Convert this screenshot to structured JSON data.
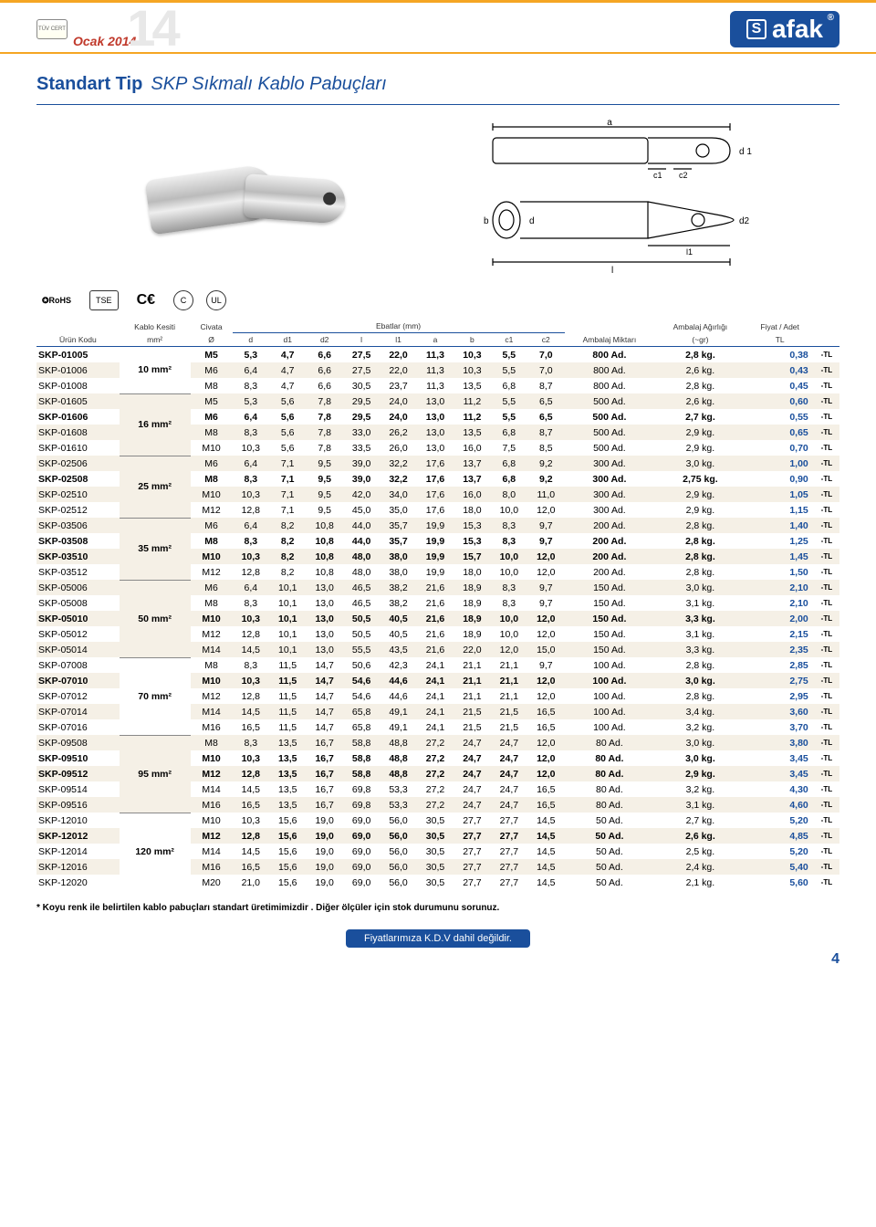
{
  "header": {
    "cert_small": "TÜV CERT",
    "date": "Ocak 2014",
    "year_big": "14",
    "logo_text": "afak"
  },
  "title": {
    "strong": "Standart Tip",
    "italic": "SKP Sıkmalı Kablo Pabuçları"
  },
  "diagram_labels": [
    "a",
    "c1",
    "c2",
    "d1",
    "b",
    "d",
    "d2",
    "l1",
    "l"
  ],
  "cert_row": [
    "RoHS",
    "TSE",
    "CE",
    "C",
    "UL"
  ],
  "columns": {
    "urun": "Ürün Kodu",
    "kesit": "Kablo Kesiti",
    "kesit_sub": "mm²",
    "civata": "Civata",
    "civata_sub": "Ø",
    "ebatlar": "Ebatlar (mm)",
    "d": "d",
    "d1": "d1",
    "d2": "d2",
    "l": "l",
    "l1": "l1",
    "a": "a",
    "b": "b",
    "c1": "c1",
    "c2": "c2",
    "miktar": "Ambalaj Miktarı",
    "agirlik": "Ambalaj Ağırlığı",
    "agirlik_sub": "(~gr)",
    "fiyat": "Fiyat / Adet",
    "fiyat_sub": "TL"
  },
  "kesit_groups": [
    {
      "label": "10 mm²",
      "span": 3
    },
    {
      "label": "16 mm²",
      "span": 4
    },
    {
      "label": "25 mm²",
      "span": 4
    },
    {
      "label": "35 mm²",
      "span": 4
    },
    {
      "label": "50 mm²",
      "span": 5
    },
    {
      "label": "70 mm²",
      "span": 5
    },
    {
      "label": "95 mm²",
      "span": 5
    },
    {
      "label": "120 mm²",
      "span": 5
    }
  ],
  "rows": [
    {
      "bold": true,
      "code": "SKP-01005",
      "c": "M5",
      "d": "5,3",
      "d1": "4,7",
      "d2": "6,6",
      "l": "27,5",
      "l1": "22,0",
      "a": "11,3",
      "b": "10,3",
      "c1": "5,5",
      "c2": "7,0",
      "m": "800 Ad.",
      "w": "2,8 kg.",
      "p": "0,38"
    },
    {
      "bold": false,
      "code": "SKP-01006",
      "c": "M6",
      "d": "6,4",
      "d1": "4,7",
      "d2": "6,6",
      "l": "27,5",
      "l1": "22,0",
      "a": "11,3",
      "b": "10,3",
      "c1": "5,5",
      "c2": "7,0",
      "m": "800 Ad.",
      "w": "2,6 kg.",
      "p": "0,43"
    },
    {
      "bold": false,
      "code": "SKP-01008",
      "c": "M8",
      "d": "8,3",
      "d1": "4,7",
      "d2": "6,6",
      "l": "30,5",
      "l1": "23,7",
      "a": "11,3",
      "b": "13,5",
      "c1": "6,8",
      "c2": "8,7",
      "m": "800 Ad.",
      "w": "2,8 kg.",
      "p": "0,45"
    },
    {
      "bold": false,
      "code": "SKP-01605",
      "c": "M5",
      "d": "5,3",
      "d1": "5,6",
      "d2": "7,8",
      "l": "29,5",
      "l1": "24,0",
      "a": "13,0",
      "b": "11,2",
      "c1": "5,5",
      "c2": "6,5",
      "m": "500 Ad.",
      "w": "2,6 kg.",
      "p": "0,60"
    },
    {
      "bold": true,
      "code": "SKP-01606",
      "c": "M6",
      "d": "6,4",
      "d1": "5,6",
      "d2": "7,8",
      "l": "29,5",
      "l1": "24,0",
      "a": "13,0",
      "b": "11,2",
      "c1": "5,5",
      "c2": "6,5",
      "m": "500 Ad.",
      "w": "2,7 kg.",
      "p": "0,55"
    },
    {
      "bold": false,
      "code": "SKP-01608",
      "c": "M8",
      "d": "8,3",
      "d1": "5,6",
      "d2": "7,8",
      "l": "33,0",
      "l1": "26,2",
      "a": "13,0",
      "b": "13,5",
      "c1": "6,8",
      "c2": "8,7",
      "m": "500 Ad.",
      "w": "2,9 kg.",
      "p": "0,65"
    },
    {
      "bold": false,
      "code": "SKP-01610",
      "c": "M10",
      "d": "10,3",
      "d1": "5,6",
      "d2": "7,8",
      "l": "33,5",
      "l1": "26,0",
      "a": "13,0",
      "b": "16,0",
      "c1": "7,5",
      "c2": "8,5",
      "m": "500 Ad.",
      "w": "2,9 kg.",
      "p": "0,70"
    },
    {
      "bold": false,
      "code": "SKP-02506",
      "c": "M6",
      "d": "6,4",
      "d1": "7,1",
      "d2": "9,5",
      "l": "39,0",
      "l1": "32,2",
      "a": "17,6",
      "b": "13,7",
      "c1": "6,8",
      "c2": "9,2",
      "m": "300 Ad.",
      "w": "3,0 kg.",
      "p": "1,00"
    },
    {
      "bold": true,
      "code": "SKP-02508",
      "c": "M8",
      "d": "8,3",
      "d1": "7,1",
      "d2": "9,5",
      "l": "39,0",
      "l1": "32,2",
      "a": "17,6",
      "b": "13,7",
      "c1": "6,8",
      "c2": "9,2",
      "m": "300 Ad.",
      "w": "2,75 kg.",
      "p": "0,90"
    },
    {
      "bold": false,
      "code": "SKP-02510",
      "c": "M10",
      "d": "10,3",
      "d1": "7,1",
      "d2": "9,5",
      "l": "42,0",
      "l1": "34,0",
      "a": "17,6",
      "b": "16,0",
      "c1": "8,0",
      "c2": "11,0",
      "m": "300 Ad.",
      "w": "2,9 kg.",
      "p": "1,05"
    },
    {
      "bold": false,
      "code": "SKP-02512",
      "c": "M12",
      "d": "12,8",
      "d1": "7,1",
      "d2": "9,5",
      "l": "45,0",
      "l1": "35,0",
      "a": "17,6",
      "b": "18,0",
      "c1": "10,0",
      "c2": "12,0",
      "m": "300 Ad.",
      "w": "2,9 kg.",
      "p": "1,15"
    },
    {
      "bold": false,
      "code": "SKP-03506",
      "c": "M6",
      "d": "6,4",
      "d1": "8,2",
      "d2": "10,8",
      "l": "44,0",
      "l1": "35,7",
      "a": "19,9",
      "b": "15,3",
      "c1": "8,3",
      "c2": "9,7",
      "m": "200 Ad.",
      "w": "2,8 kg.",
      "p": "1,40"
    },
    {
      "bold": true,
      "code": "SKP-03508",
      "c": "M8",
      "d": "8,3",
      "d1": "8,2",
      "d2": "10,8",
      "l": "44,0",
      "l1": "35,7",
      "a": "19,9",
      "b": "15,3",
      "c1": "8,3",
      "c2": "9,7",
      "m": "200 Ad.",
      "w": "2,8 kg.",
      "p": "1,25"
    },
    {
      "bold": true,
      "code": "SKP-03510",
      "c": "M10",
      "d": "10,3",
      "d1": "8,2",
      "d2": "10,8",
      "l": "48,0",
      "l1": "38,0",
      "a": "19,9",
      "b": "15,7",
      "c1": "10,0",
      "c2": "12,0",
      "m": "200 Ad.",
      "w": "2,8 kg.",
      "p": "1,45"
    },
    {
      "bold": false,
      "code": "SKP-03512",
      "c": "M12",
      "d": "12,8",
      "d1": "8,2",
      "d2": "10,8",
      "l": "48,0",
      "l1": "38,0",
      "a": "19,9",
      "b": "18,0",
      "c1": "10,0",
      "c2": "12,0",
      "m": "200 Ad.",
      "w": "2,8 kg.",
      "p": "1,50"
    },
    {
      "bold": false,
      "code": "SKP-05006",
      "c": "M6",
      "d": "6,4",
      "d1": "10,1",
      "d2": "13,0",
      "l": "46,5",
      "l1": "38,2",
      "a": "21,6",
      "b": "18,9",
      "c1": "8,3",
      "c2": "9,7",
      "m": "150 Ad.",
      "w": "3,0 kg.",
      "p": "2,10"
    },
    {
      "bold": false,
      "code": "SKP-05008",
      "c": "M8",
      "d": "8,3",
      "d1": "10,1",
      "d2": "13,0",
      "l": "46,5",
      "l1": "38,2",
      "a": "21,6",
      "b": "18,9",
      "c1": "8,3",
      "c2": "9,7",
      "m": "150 Ad.",
      "w": "3,1 kg.",
      "p": "2,10"
    },
    {
      "bold": true,
      "code": "SKP-05010",
      "c": "M10",
      "d": "10,3",
      "d1": "10,1",
      "d2": "13,0",
      "l": "50,5",
      "l1": "40,5",
      "a": "21,6",
      "b": "18,9",
      "c1": "10,0",
      "c2": "12,0",
      "m": "150 Ad.",
      "w": "3,3 kg.",
      "p": "2,00"
    },
    {
      "bold": false,
      "code": "SKP-05012",
      "c": "M12",
      "d": "12,8",
      "d1": "10,1",
      "d2": "13,0",
      "l": "50,5",
      "l1": "40,5",
      "a": "21,6",
      "b": "18,9",
      "c1": "10,0",
      "c2": "12,0",
      "m": "150 Ad.",
      "w": "3,1 kg.",
      "p": "2,15"
    },
    {
      "bold": false,
      "code": "SKP-05014",
      "c": "M14",
      "d": "14,5",
      "d1": "10,1",
      "d2": "13,0",
      "l": "55,5",
      "l1": "43,5",
      "a": "21,6",
      "b": "22,0",
      "c1": "12,0",
      "c2": "15,0",
      "m": "150 Ad.",
      "w": "3,3 kg.",
      "p": "2,35"
    },
    {
      "bold": false,
      "code": "SKP-07008",
      "c": "M8",
      "d": "8,3",
      "d1": "11,5",
      "d2": "14,7",
      "l": "50,6",
      "l1": "42,3",
      "a": "24,1",
      "b": "21,1",
      "c1": "21,1",
      "c2": "9,7",
      "m": "100 Ad.",
      "w": "2,8 kg.",
      "p": "2,85"
    },
    {
      "bold": true,
      "code": "SKP-07010",
      "c": "M10",
      "d": "10,3",
      "d1": "11,5",
      "d2": "14,7",
      "l": "54,6",
      "l1": "44,6",
      "a": "24,1",
      "b": "21,1",
      "c1": "21,1",
      "c2": "12,0",
      "m": "100 Ad.",
      "w": "3,0 kg.",
      "p": "2,75"
    },
    {
      "bold": false,
      "code": "SKP-07012",
      "c": "M12",
      "d": "12,8",
      "d1": "11,5",
      "d2": "14,7",
      "l": "54,6",
      "l1": "44,6",
      "a": "24,1",
      "b": "21,1",
      "c1": "21,1",
      "c2": "12,0",
      "m": "100 Ad.",
      "w": "2,8 kg.",
      "p": "2,95"
    },
    {
      "bold": false,
      "code": "SKP-07014",
      "c": "M14",
      "d": "14,5",
      "d1": "11,5",
      "d2": "14,7",
      "l": "65,8",
      "l1": "49,1",
      "a": "24,1",
      "b": "21,5",
      "c1": "21,5",
      "c2": "16,5",
      "m": "100 Ad.",
      "w": "3,4 kg.",
      "p": "3,60"
    },
    {
      "bold": false,
      "code": "SKP-07016",
      "c": "M16",
      "d": "16,5",
      "d1": "11,5",
      "d2": "14,7",
      "l": "65,8",
      "l1": "49,1",
      "a": "24,1",
      "b": "21,5",
      "c1": "21,5",
      "c2": "16,5",
      "m": "100 Ad.",
      "w": "3,2 kg.",
      "p": "3,70"
    },
    {
      "bold": false,
      "code": "SKP-09508",
      "c": "M8",
      "d": "8,3",
      "d1": "13,5",
      "d2": "16,7",
      "l": "58,8",
      "l1": "48,8",
      "a": "27,2",
      "b": "24,7",
      "c1": "24,7",
      "c2": "12,0",
      "m": "80 Ad.",
      "w": "3,0 kg.",
      "p": "3,80"
    },
    {
      "bold": true,
      "code": "SKP-09510",
      "c": "M10",
      "d": "10,3",
      "d1": "13,5",
      "d2": "16,7",
      "l": "58,8",
      "l1": "48,8",
      "a": "27,2",
      "b": "24,7",
      "c1": "24,7",
      "c2": "12,0",
      "m": "80 Ad.",
      "w": "3,0 kg.",
      "p": "3,45"
    },
    {
      "bold": true,
      "code": "SKP-09512",
      "c": "M12",
      "d": "12,8",
      "d1": "13,5",
      "d2": "16,7",
      "l": "58,8",
      "l1": "48,8",
      "a": "27,2",
      "b": "24,7",
      "c1": "24,7",
      "c2": "12,0",
      "m": "80 Ad.",
      "w": "2,9 kg.",
      "p": "3,45"
    },
    {
      "bold": false,
      "code": "SKP-09514",
      "c": "M14",
      "d": "14,5",
      "d1": "13,5",
      "d2": "16,7",
      "l": "69,8",
      "l1": "53,3",
      "a": "27,2",
      "b": "24,7",
      "c1": "24,7",
      "c2": "16,5",
      "m": "80 Ad.",
      "w": "3,2 kg.",
      "p": "4,30"
    },
    {
      "bold": false,
      "code": "SKP-09516",
      "c": "M16",
      "d": "16,5",
      "d1": "13,5",
      "d2": "16,7",
      "l": "69,8",
      "l1": "53,3",
      "a": "27,2",
      "b": "24,7",
      "c1": "24,7",
      "c2": "16,5",
      "m": "80 Ad.",
      "w": "3,1 kg.",
      "p": "4,60"
    },
    {
      "bold": false,
      "code": "SKP-12010",
      "c": "M10",
      "d": "10,3",
      "d1": "15,6",
      "d2": "19,0",
      "l": "69,0",
      "l1": "56,0",
      "a": "30,5",
      "b": "27,7",
      "c1": "27,7",
      "c2": "14,5",
      "m": "50 Ad.",
      "w": "2,7 kg.",
      "p": "5,20"
    },
    {
      "bold": true,
      "code": "SKP-12012",
      "c": "M12",
      "d": "12,8",
      "d1": "15,6",
      "d2": "19,0",
      "l": "69,0",
      "l1": "56,0",
      "a": "30,5",
      "b": "27,7",
      "c1": "27,7",
      "c2": "14,5",
      "m": "50 Ad.",
      "w": "2,6 kg.",
      "p": "4,85"
    },
    {
      "bold": false,
      "code": "SKP-12014",
      "c": "M14",
      "d": "14,5",
      "d1": "15,6",
      "d2": "19,0",
      "l": "69,0",
      "l1": "56,0",
      "a": "30,5",
      "b": "27,7",
      "c1": "27,7",
      "c2": "14,5",
      "m": "50 Ad.",
      "w": "2,5 kg.",
      "p": "5,20"
    },
    {
      "bold": false,
      "code": "SKP-12016",
      "c": "M16",
      "d": "16,5",
      "d1": "15,6",
      "d2": "19,0",
      "l": "69,0",
      "l1": "56,0",
      "a": "30,5",
      "b": "27,7",
      "c1": "27,7",
      "c2": "14,5",
      "m": "50 Ad.",
      "w": "2,4 kg.",
      "p": "5,40"
    },
    {
      "bold": false,
      "code": "SKP-12020",
      "c": "M20",
      "d": "21,0",
      "d1": "15,6",
      "d2": "19,0",
      "l": "69,0",
      "l1": "56,0",
      "a": "30,5",
      "b": "27,7",
      "c1": "27,7",
      "c2": "14,5",
      "m": "50 Ad.",
      "w": "2,1 kg.",
      "p": "5,60"
    }
  ],
  "tl_suffix": "-TL",
  "footnote": "* Koyu renk ile belirtilen kablo pabuçları standart üretimimizdir . Diğer ölçüler için stok durumunu sorunuz.",
  "footer_pill": "Fiyatlarımıza K.D.V dahil değildir.",
  "page_num": "4",
  "colors": {
    "accent": "#f5a623",
    "brand": "#1a4f9c",
    "row_alt": "#f5f0e6",
    "red": "#c0392b"
  }
}
